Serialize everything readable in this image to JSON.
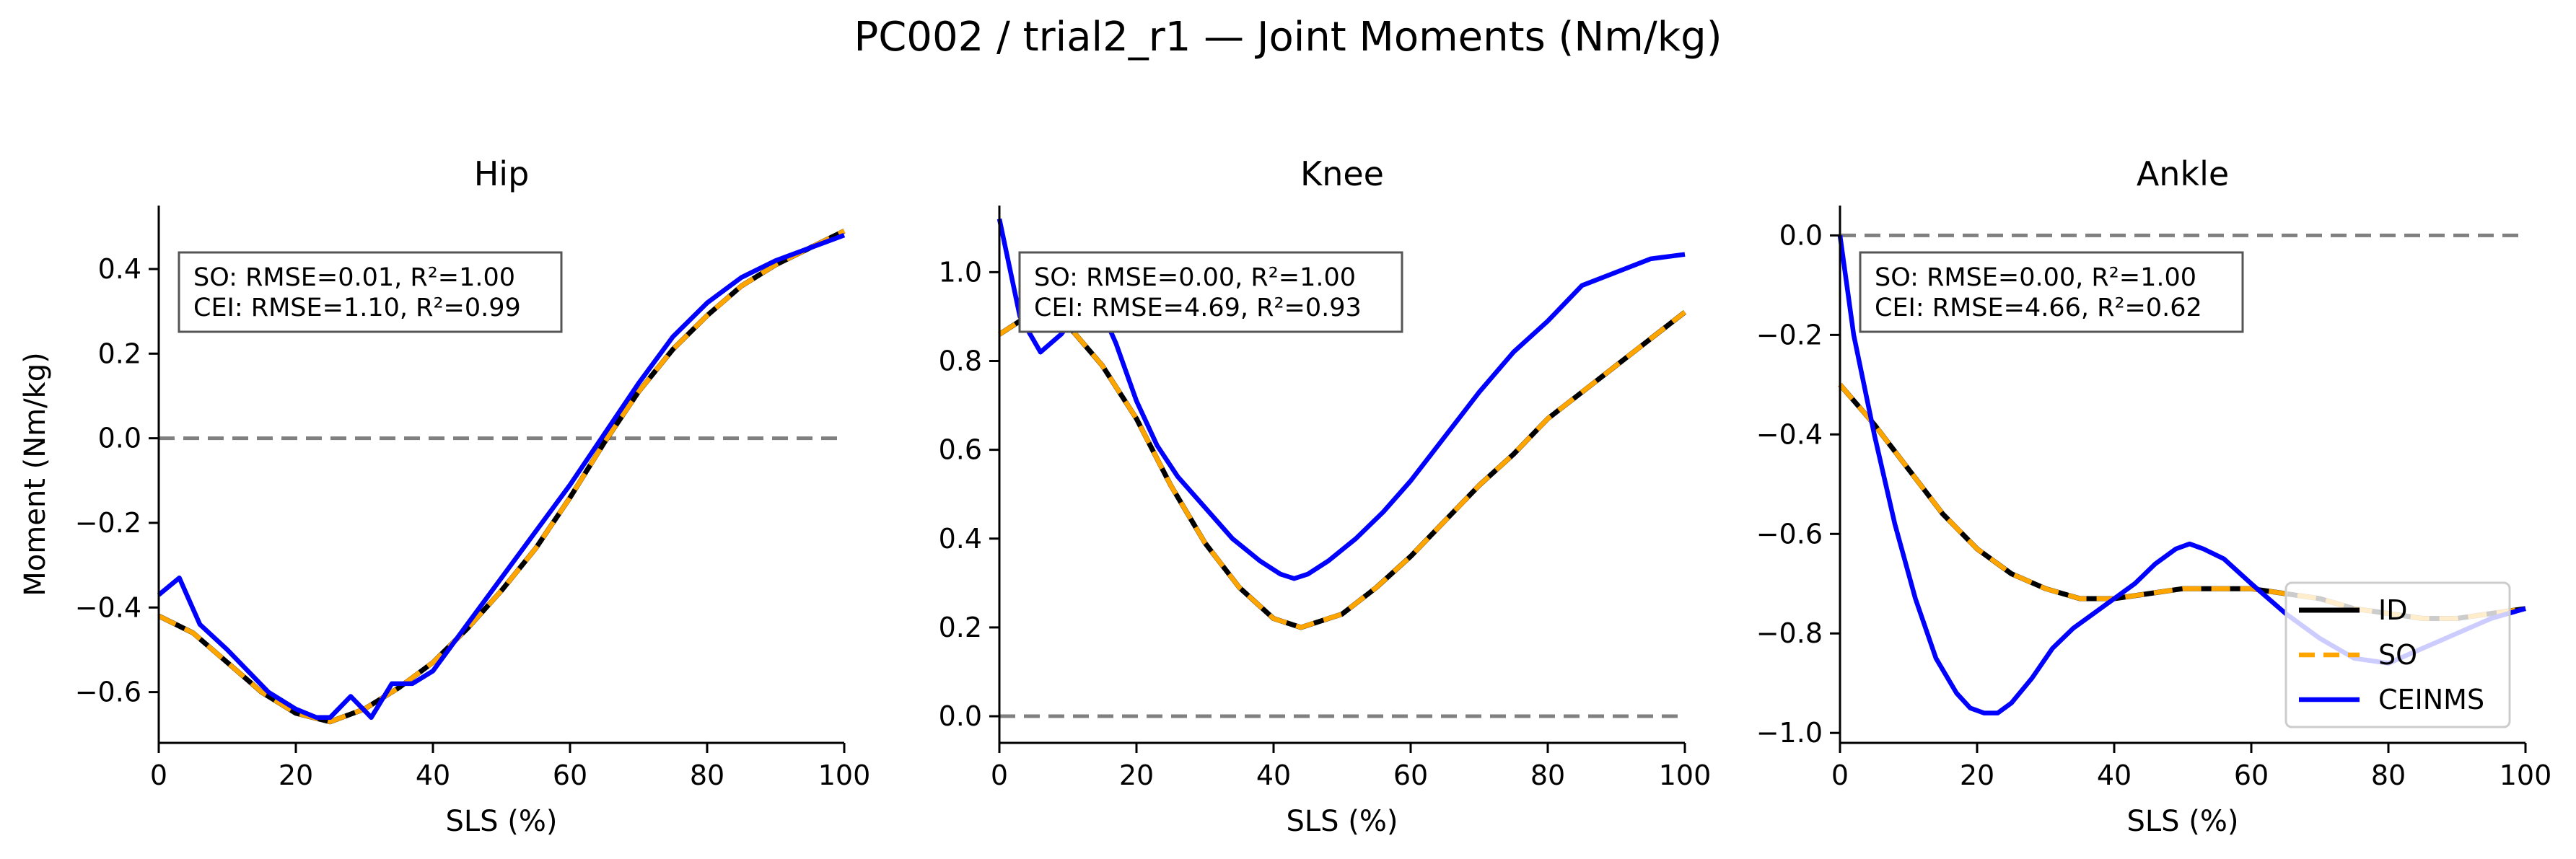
{
  "figure": {
    "suptitle": "PC002 / trial2_r1 — Joint Moments (Nm/kg)"
  },
  "legend": {
    "placement": "lower-right of Ankle panel",
    "entries": [
      {
        "label": "ID",
        "color": "#000000",
        "style": "solid"
      },
      {
        "label": "SO",
        "color": "#FFA500",
        "style": "dashed"
      },
      {
        "label": "CEINMS",
        "color": "#0000FF",
        "style": "solid"
      }
    ]
  },
  "chart_data": [
    {
      "type": "line",
      "title": "Hip",
      "xlabel": "SLS (%)",
      "ylabel": "Moment (Nm/kg)",
      "xlim": [
        0,
        100
      ],
      "ylim": [
        -0.72,
        0.55
      ],
      "xticks": [
        "0",
        "20",
        "40",
        "60",
        "80",
        "100"
      ],
      "yticks": [
        "−0.6",
        "−0.4",
        "−0.2",
        "0.0",
        "0.2",
        "0.4"
      ],
      "ytick_values": [
        -0.6,
        -0.4,
        -0.2,
        0.0,
        0.2,
        0.4
      ],
      "zero_line": true,
      "grid": false,
      "annotation": [
        "SO:  RMSE=0.01, R²=1.00",
        "CEI: RMSE=1.10, R²=0.99"
      ],
      "series": [
        {
          "name": "ID",
          "x": [
            0,
            5,
            10,
            15,
            20,
            25,
            30,
            35,
            40,
            45,
            50,
            55,
            60,
            65,
            70,
            75,
            80,
            85,
            90,
            95,
            100
          ],
          "values": [
            -0.42,
            -0.46,
            -0.53,
            -0.6,
            -0.65,
            -0.67,
            -0.64,
            -0.59,
            -0.53,
            -0.45,
            -0.36,
            -0.26,
            -0.14,
            -0.01,
            0.11,
            0.21,
            0.29,
            0.36,
            0.41,
            0.45,
            0.49
          ]
        },
        {
          "name": "SO",
          "x": [
            0,
            5,
            10,
            15,
            20,
            25,
            30,
            35,
            40,
            45,
            50,
            55,
            60,
            65,
            70,
            75,
            80,
            85,
            90,
            95,
            100
          ],
          "values": [
            -0.42,
            -0.46,
            -0.53,
            -0.6,
            -0.65,
            -0.67,
            -0.64,
            -0.59,
            -0.53,
            -0.45,
            -0.36,
            -0.26,
            -0.14,
            -0.01,
            0.11,
            0.21,
            0.29,
            0.36,
            0.41,
            0.45,
            0.49
          ]
        },
        {
          "name": "CEINMS",
          "x": [
            0,
            3,
            6,
            10,
            13,
            16,
            20,
            23,
            25,
            28,
            31,
            34,
            37,
            40,
            45,
            50,
            55,
            60,
            65,
            70,
            75,
            80,
            85,
            90,
            95,
            100
          ],
          "values": [
            -0.37,
            -0.33,
            -0.44,
            -0.5,
            -0.55,
            -0.6,
            -0.64,
            -0.66,
            -0.66,
            -0.61,
            -0.66,
            -0.58,
            -0.58,
            -0.55,
            -0.44,
            -0.33,
            -0.22,
            -0.11,
            0.01,
            0.13,
            0.24,
            0.32,
            0.38,
            0.42,
            0.45,
            0.48
          ]
        }
      ]
    },
    {
      "type": "line",
      "title": "Knee",
      "xlabel": "SLS (%)",
      "ylabel": "",
      "xlim": [
        0,
        100
      ],
      "ylim": [
        -0.06,
        1.15
      ],
      "xticks": [
        "0",
        "20",
        "40",
        "60",
        "80",
        "100"
      ],
      "yticks": [
        "0.0",
        "0.2",
        "0.4",
        "0.6",
        "0.8",
        "1.0"
      ],
      "ytick_values": [
        0.0,
        0.2,
        0.4,
        0.6,
        0.8,
        1.0
      ],
      "zero_line": true,
      "grid": false,
      "annotation": [
        "SO:  RMSE=0.00, R²=1.00",
        "CEI: RMSE=4.69, R²=0.93"
      ],
      "series": [
        {
          "name": "ID",
          "x": [
            0,
            5,
            10,
            15,
            20,
            25,
            30,
            35,
            40,
            44,
            50,
            55,
            60,
            65,
            70,
            75,
            80,
            85,
            90,
            95,
            100
          ],
          "values": [
            0.86,
            0.91,
            0.88,
            0.79,
            0.67,
            0.52,
            0.39,
            0.29,
            0.22,
            0.2,
            0.23,
            0.29,
            0.36,
            0.44,
            0.52,
            0.59,
            0.67,
            0.73,
            0.79,
            0.85,
            0.91
          ]
        },
        {
          "name": "SO",
          "x": [
            0,
            5,
            10,
            15,
            20,
            25,
            30,
            35,
            40,
            44,
            50,
            55,
            60,
            65,
            70,
            75,
            80,
            85,
            90,
            95,
            100
          ],
          "values": [
            0.86,
            0.91,
            0.88,
            0.79,
            0.67,
            0.52,
            0.39,
            0.29,
            0.22,
            0.2,
            0.23,
            0.29,
            0.36,
            0.44,
            0.52,
            0.59,
            0.67,
            0.73,
            0.79,
            0.85,
            0.91
          ]
        },
        {
          "name": "CEINMS",
          "x": [
            0,
            3,
            6,
            9,
            12,
            15,
            17,
            20,
            23,
            26,
            30,
            34,
            38,
            41,
            43,
            45,
            48,
            52,
            56,
            60,
            65,
            70,
            75,
            80,
            85,
            90,
            95,
            100
          ],
          "values": [
            1.12,
            0.9,
            0.82,
            0.86,
            0.92,
            0.91,
            0.84,
            0.71,
            0.61,
            0.54,
            0.47,
            0.4,
            0.35,
            0.32,
            0.31,
            0.32,
            0.35,
            0.4,
            0.46,
            0.53,
            0.63,
            0.73,
            0.82,
            0.89,
            0.97,
            1.0,
            1.03,
            1.04
          ]
        }
      ]
    },
    {
      "type": "line",
      "title": "Ankle",
      "xlabel": "SLS (%)",
      "ylabel": "",
      "xlim": [
        0,
        100
      ],
      "ylim": [
        -1.02,
        0.06
      ],
      "xticks": [
        "0",
        "20",
        "40",
        "60",
        "80",
        "100"
      ],
      "yticks": [
        "−1.0",
        "−0.8",
        "−0.6",
        "−0.4",
        "−0.2",
        "0.0"
      ],
      "ytick_values": [
        -1.0,
        -0.8,
        -0.6,
        -0.4,
        -0.2,
        0.0
      ],
      "zero_line": true,
      "grid": false,
      "annotation": [
        "SO:  RMSE=0.00, R²=1.00",
        "CEI: RMSE=4.66, R²=0.62"
      ],
      "series": [
        {
          "name": "ID",
          "x": [
            0,
            5,
            10,
            15,
            20,
            25,
            30,
            35,
            40,
            45,
            50,
            55,
            60,
            65,
            70,
            75,
            80,
            85,
            90,
            95,
            100
          ],
          "values": [
            -0.3,
            -0.38,
            -0.47,
            -0.56,
            -0.63,
            -0.68,
            -0.71,
            -0.73,
            -0.73,
            -0.72,
            -0.71,
            -0.71,
            -0.71,
            -0.72,
            -0.73,
            -0.75,
            -0.76,
            -0.77,
            -0.77,
            -0.76,
            -0.75
          ]
        },
        {
          "name": "SO",
          "x": [
            0,
            5,
            10,
            15,
            20,
            25,
            30,
            35,
            40,
            45,
            50,
            55,
            60,
            65,
            70,
            75,
            80,
            85,
            90,
            95,
            100
          ],
          "values": [
            -0.3,
            -0.38,
            -0.47,
            -0.56,
            -0.63,
            -0.68,
            -0.71,
            -0.73,
            -0.73,
            -0.72,
            -0.71,
            -0.71,
            -0.71,
            -0.72,
            -0.73,
            -0.75,
            -0.76,
            -0.77,
            -0.77,
            -0.76,
            -0.75
          ]
        },
        {
          "name": "CEINMS",
          "x": [
            0,
            2,
            5,
            8,
            11,
            14,
            17,
            19,
            21,
            23,
            25,
            28,
            31,
            34,
            37,
            40,
            43,
            46,
            49,
            51,
            53,
            56,
            60,
            65,
            70,
            75,
            80,
            85,
            90,
            95,
            100
          ],
          "values": [
            0.0,
            -0.2,
            -0.4,
            -0.58,
            -0.73,
            -0.85,
            -0.92,
            -0.95,
            -0.96,
            -0.96,
            -0.94,
            -0.89,
            -0.83,
            -0.79,
            -0.76,
            -0.73,
            -0.7,
            -0.66,
            -0.63,
            -0.62,
            -0.63,
            -0.65,
            -0.7,
            -0.76,
            -0.81,
            -0.85,
            -0.86,
            -0.83,
            -0.8,
            -0.77,
            -0.75
          ]
        }
      ]
    }
  ]
}
